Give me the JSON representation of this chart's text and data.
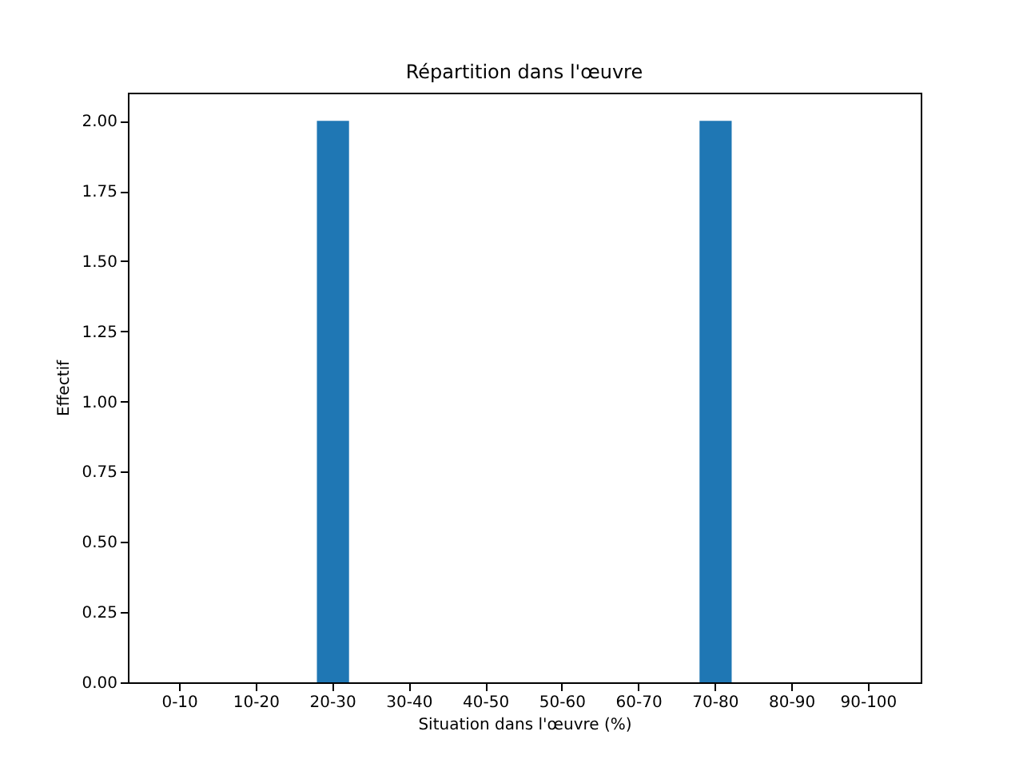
{
  "chart_data": {
    "type": "bar",
    "title": "Répartition dans l'œuvre",
    "xlabel": "Situation dans l'œuvre (%)",
    "ylabel": "Effectif",
    "categories": [
      "0-10",
      "10-20",
      "20-30",
      "30-40",
      "40-50",
      "50-60",
      "60-70",
      "70-80",
      "80-90",
      "90-100"
    ],
    "values": [
      0,
      0,
      2,
      0,
      0,
      0,
      0,
      2,
      0,
      0
    ],
    "color": "#1f77b4",
    "ylim": [
      0,
      2.1
    ],
    "yticks": [
      {
        "value": 0,
        "label": "0.00"
      },
      {
        "value": 0.25,
        "label": "0.25"
      },
      {
        "value": 0.5,
        "label": "0.50"
      },
      {
        "value": 0.75,
        "label": "0.75"
      },
      {
        "value": 1,
        "label": "1.00"
      },
      {
        "value": 1.25,
        "label": "1.25"
      },
      {
        "value": 1.5,
        "label": "1.50"
      },
      {
        "value": 1.75,
        "label": "1.75"
      },
      {
        "value": 2,
        "label": "2.00"
      }
    ],
    "grid": false
  }
}
